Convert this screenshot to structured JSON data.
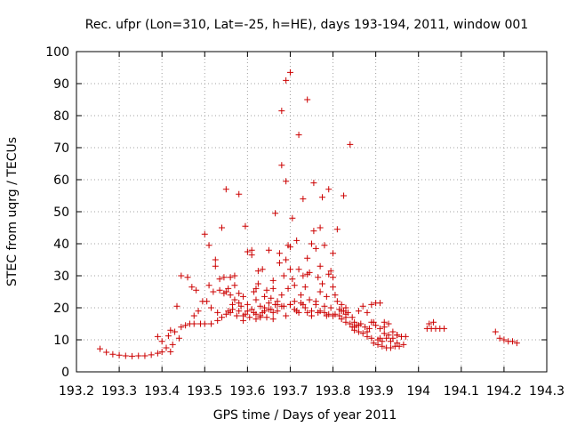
{
  "chart_data": {
    "type": "scatter",
    "title": "Rec. ufpr (Lon=310, Lat=-25, h=HE), days 193-194, 2011, window 001",
    "xlabel": "GPS time / Days of year 2011",
    "ylabel": "STEC from uqrg / TECUs",
    "xlim": [
      193.2,
      194.3
    ],
    "ylim": [
      0,
      100
    ],
    "xticks": [
      193.2,
      193.3,
      193.4,
      193.5,
      193.6,
      193.7,
      193.8,
      193.9,
      194.0,
      194.1,
      194.2,
      194.3
    ],
    "xtick_labels": [
      "193.2",
      "193.3",
      "193.4",
      "193.5",
      "193.6",
      "193.7",
      "193.8",
      "193.9",
      "194",
      "194.1",
      "194.2",
      "194.3"
    ],
    "yticks": [
      0,
      10,
      20,
      30,
      40,
      50,
      60,
      70,
      80,
      90,
      100
    ],
    "ytick_labels": [
      "0",
      "10",
      "20",
      "30",
      "40",
      "50",
      "60",
      "70",
      "80",
      "90",
      "100"
    ],
    "grid": true,
    "marker": "+",
    "color": "#cc0000",
    "points": [
      [
        193.255,
        7.2
      ],
      [
        193.27,
        6.1
      ],
      [
        193.285,
        5.5
      ],
      [
        193.3,
        5.2
      ],
      [
        193.315,
        5.0
      ],
      [
        193.33,
        4.9
      ],
      [
        193.345,
        5.0
      ],
      [
        193.36,
        5.0
      ],
      [
        193.375,
        5.3
      ],
      [
        193.39,
        5.8
      ],
      [
        193.39,
        11.0
      ],
      [
        193.4,
        6.2
      ],
      [
        193.4,
        9.5
      ],
      [
        193.41,
        7.5
      ],
      [
        193.415,
        11.2
      ],
      [
        193.42,
        6.3
      ],
      [
        193.42,
        13.0
      ],
      [
        193.425,
        8.5
      ],
      [
        193.43,
        12.5
      ],
      [
        193.435,
        20.5
      ],
      [
        193.44,
        10.5
      ],
      [
        193.445,
        14.0
      ],
      [
        193.445,
        30.0
      ],
      [
        193.455,
        14.5
      ],
      [
        193.46,
        29.5
      ],
      [
        193.465,
        15.0
      ],
      [
        193.47,
        26.5
      ],
      [
        193.475,
        15.0
      ],
      [
        193.475,
        17.5
      ],
      [
        193.48,
        25.5
      ],
      [
        193.485,
        19.0
      ],
      [
        193.49,
        15.0
      ],
      [
        193.495,
        22.0
      ],
      [
        193.5,
        15.0
      ],
      [
        193.5,
        43.0
      ],
      [
        193.505,
        22.0
      ],
      [
        193.51,
        27.0
      ],
      [
        193.51,
        39.5
      ],
      [
        193.515,
        15.0
      ],
      [
        193.515,
        20.0
      ],
      [
        193.52,
        25.0
      ],
      [
        193.525,
        33.0
      ],
      [
        193.525,
        35.0
      ],
      [
        193.53,
        18.5
      ],
      [
        193.53,
        16.0
      ],
      [
        193.535,
        25.5
      ],
      [
        193.535,
        29.0
      ],
      [
        193.54,
        45.0
      ],
      [
        193.54,
        17.0
      ],
      [
        193.545,
        24.5
      ],
      [
        193.545,
        29.5
      ],
      [
        193.55,
        18.0
      ],
      [
        193.55,
        57.0
      ],
      [
        193.555,
        19.0
      ],
      [
        193.555,
        26.0
      ],
      [
        193.56,
        29.5
      ],
      [
        193.56,
        24.0
      ],
      [
        193.565,
        19.5
      ],
      [
        193.565,
        21.0
      ],
      [
        193.57,
        27.0
      ],
      [
        193.57,
        22.5
      ],
      [
        193.575,
        17.5
      ],
      [
        193.58,
        55.5
      ],
      [
        193.58,
        19.0
      ],
      [
        193.585,
        20.5
      ],
      [
        193.59,
        23.5
      ],
      [
        193.59,
        16.0
      ],
      [
        193.595,
        45.5
      ],
      [
        193.595,
        18.0
      ],
      [
        193.6,
        21.0
      ],
      [
        193.6,
        19.0
      ],
      [
        193.605,
        17.0
      ],
      [
        193.61,
        38.0
      ],
      [
        193.61,
        36.5
      ],
      [
        193.615,
        25.0
      ],
      [
        193.615,
        18.5
      ],
      [
        193.62,
        22.5
      ],
      [
        193.62,
        16.5
      ],
      [
        193.625,
        31.5
      ],
      [
        193.625,
        27.5
      ],
      [
        193.63,
        20.5
      ],
      [
        193.63,
        17.5
      ],
      [
        193.635,
        18.5
      ],
      [
        193.635,
        32.0
      ],
      [
        193.64,
        23.5
      ],
      [
        193.64,
        19.0
      ],
      [
        193.645,
        25.5
      ],
      [
        193.645,
        17.0
      ],
      [
        193.65,
        38.0
      ],
      [
        193.65,
        21.5
      ],
      [
        193.655,
        19.5
      ],
      [
        193.655,
        23.0
      ],
      [
        193.66,
        18.5
      ],
      [
        193.66,
        28.5
      ],
      [
        193.665,
        49.5
      ],
      [
        193.665,
        21.0
      ],
      [
        193.67,
        19.0
      ],
      [
        193.67,
        22.0
      ],
      [
        193.675,
        37.0
      ],
      [
        193.675,
        34.0
      ],
      [
        193.68,
        64.5
      ],
      [
        193.68,
        81.5
      ],
      [
        193.68,
        24.0
      ],
      [
        193.685,
        20.5
      ],
      [
        193.685,
        30.0
      ],
      [
        193.69,
        59.5
      ],
      [
        193.69,
        91.0
      ],
      [
        193.69,
        35.0
      ],
      [
        193.695,
        39.5
      ],
      [
        193.695,
        26.0
      ],
      [
        193.7,
        39.0
      ],
      [
        193.7,
        93.5
      ],
      [
        193.7,
        21.0
      ],
      [
        193.705,
        48.0
      ],
      [
        193.705,
        29.0
      ],
      [
        193.71,
        27.0
      ],
      [
        193.71,
        22.0
      ],
      [
        193.715,
        41.0
      ],
      [
        193.715,
        19.0
      ],
      [
        193.72,
        74.0
      ],
      [
        193.72,
        32.0
      ],
      [
        193.725,
        24.0
      ],
      [
        193.725,
        21.5
      ],
      [
        193.73,
        54.0
      ],
      [
        193.73,
        30.0
      ],
      [
        193.735,
        26.5
      ],
      [
        193.735,
        20.0
      ],
      [
        193.74,
        85.0
      ],
      [
        193.74,
        35.5
      ],
      [
        193.745,
        31.0
      ],
      [
        193.745,
        22.5
      ],
      [
        193.75,
        40.0
      ],
      [
        193.75,
        19.0
      ],
      [
        193.755,
        59.0
      ],
      [
        193.755,
        44.0
      ],
      [
        193.76,
        38.5
      ],
      [
        193.76,
        22.0
      ],
      [
        193.765,
        29.5
      ],
      [
        193.765,
        18.5
      ],
      [
        193.77,
        45.0
      ],
      [
        193.77,
        25.0
      ],
      [
        193.775,
        54.5
      ],
      [
        193.775,
        27.5
      ],
      [
        193.78,
        39.5
      ],
      [
        193.78,
        20.5
      ],
      [
        193.785,
        23.5
      ],
      [
        193.785,
        17.5
      ],
      [
        193.79,
        57.0
      ],
      [
        193.79,
        30.5
      ],
      [
        193.795,
        31.5
      ],
      [
        193.795,
        20.0
      ],
      [
        193.8,
        37.0
      ],
      [
        193.8,
        26.5
      ],
      [
        193.805,
        24.0
      ],
      [
        193.805,
        18.0
      ],
      [
        193.81,
        44.5
      ],
      [
        193.81,
        22.0
      ],
      [
        193.815,
        17.5
      ],
      [
        193.815,
        19.5
      ],
      [
        193.82,
        21.0
      ],
      [
        193.82,
        16.5
      ],
      [
        193.825,
        55.0
      ],
      [
        193.825,
        19.0
      ],
      [
        193.83,
        20.0
      ],
      [
        193.83,
        15.5
      ],
      [
        193.835,
        18.5
      ],
      [
        193.84,
        71.0
      ],
      [
        193.84,
        15.0
      ],
      [
        193.845,
        17.0
      ],
      [
        193.845,
        14.0
      ],
      [
        193.85,
        15.5
      ],
      [
        193.85,
        13.0
      ],
      [
        193.855,
        14.5
      ],
      [
        193.86,
        19.0
      ],
      [
        193.86,
        12.5
      ],
      [
        193.865,
        15.0
      ],
      [
        193.87,
        20.5
      ],
      [
        193.87,
        12.0
      ],
      [
        193.875,
        14.0
      ],
      [
        193.88,
        18.5
      ],
      [
        193.88,
        11.0
      ],
      [
        193.885,
        13.5
      ],
      [
        193.89,
        21.0
      ],
      [
        193.89,
        10.5
      ],
      [
        193.895,
        15.5
      ],
      [
        193.895,
        9.0
      ],
      [
        193.9,
        21.5
      ],
      [
        193.9,
        14.5
      ],
      [
        193.905,
        10.0
      ],
      [
        193.905,
        8.5
      ],
      [
        193.91,
        21.5
      ],
      [
        193.91,
        13.5
      ],
      [
        193.915,
        9.5
      ],
      [
        193.915,
        8.0
      ],
      [
        193.92,
        15.5
      ],
      [
        193.92,
        12.0
      ],
      [
        193.925,
        10.5
      ],
      [
        193.925,
        7.5
      ],
      [
        193.93,
        15.0
      ],
      [
        193.93,
        11.5
      ],
      [
        193.935,
        9.5
      ],
      [
        193.935,
        7.5
      ],
      [
        193.94,
        12.5
      ],
      [
        193.94,
        10.5
      ],
      [
        193.945,
        8.0
      ],
      [
        193.95,
        11.5
      ],
      [
        193.95,
        9.0
      ],
      [
        193.955,
        8.0
      ],
      [
        193.96,
        11.0
      ],
      [
        193.965,
        8.5
      ],
      [
        194.02,
        13.5
      ],
      [
        194.025,
        15.0
      ],
      [
        194.03,
        13.5
      ],
      [
        194.035,
        15.5
      ],
      [
        194.04,
        13.5
      ],
      [
        194.05,
        13.5
      ],
      [
        194.06,
        13.5
      ],
      [
        194.18,
        12.5
      ],
      [
        194.19,
        10.5
      ],
      [
        194.2,
        10.0
      ],
      [
        194.21,
        9.5
      ],
      [
        194.22,
        9.5
      ],
      [
        194.23,
        9.0
      ],
      [
        193.57,
        30.0
      ],
      [
        193.6,
        37.5
      ],
      [
        193.63,
        17.0
      ],
      [
        193.66,
        16.5
      ],
      [
        193.69,
        17.5
      ],
      [
        193.72,
        18.5
      ],
      [
        193.75,
        17.5
      ],
      [
        193.78,
        18.5
      ],
      [
        193.55,
        25.0
      ],
      [
        193.58,
        21.5
      ],
      [
        193.61,
        19.5
      ],
      [
        193.64,
        20.0
      ],
      [
        193.67,
        21.0
      ],
      [
        193.7,
        21.0
      ],
      [
        193.73,
        21.0
      ],
      [
        193.76,
        21.0
      ],
      [
        193.79,
        18.0
      ],
      [
        193.82,
        19.0
      ],
      [
        193.85,
        14.0
      ],
      [
        193.88,
        12.5
      ],
      [
        193.91,
        10.5
      ],
      [
        193.58,
        24.5
      ],
      [
        193.62,
        26.0
      ],
      [
        193.66,
        26.0
      ],
      [
        193.7,
        32.0
      ],
      [
        193.74,
        30.5
      ],
      [
        193.77,
        33.0
      ],
      [
        193.8,
        29.5
      ],
      [
        193.83,
        18.0
      ],
      [
        193.56,
        18.5
      ],
      [
        193.59,
        17.5
      ],
      [
        193.62,
        18.0
      ],
      [
        193.65,
        19.5
      ],
      [
        193.68,
        20.5
      ],
      [
        193.71,
        19.5
      ],
      [
        193.74,
        18.5
      ],
      [
        193.77,
        19.0
      ],
      [
        193.8,
        17.5
      ],
      [
        193.83,
        17.0
      ],
      [
        193.86,
        14.5
      ],
      [
        193.89,
        15.5
      ],
      [
        193.92,
        14.0
      ],
      [
        193.95,
        11.5
      ],
      [
        193.97,
        11.0
      ]
    ]
  }
}
